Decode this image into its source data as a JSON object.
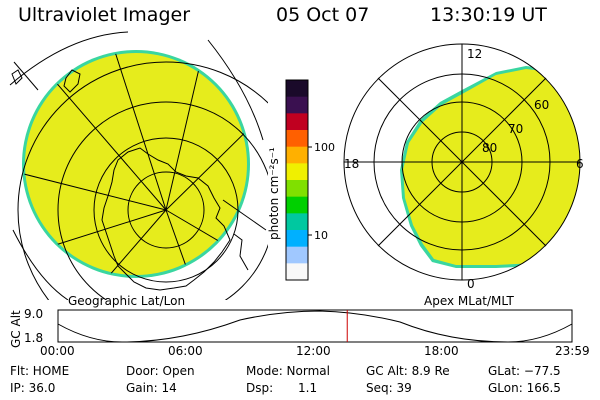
{
  "header": {
    "instrument": "Ultraviolet Imager",
    "date": "05 Oct 07",
    "time": "13:30:19 UT"
  },
  "left_panel": {
    "label": "Geographic Lat/Lon"
  },
  "right_panel": {
    "label": "Apex MLat/MLT",
    "mlt_labels": {
      "top": "12",
      "left": "18",
      "right": "6",
      "bottom": "0"
    },
    "lat_labels": [
      "60",
      "70",
      "80"
    ]
  },
  "colorbar": {
    "unit": "photon cm⁻²s⁻¹",
    "tick_labels": [
      "100",
      "10"
    ],
    "colors": [
      "#1a0a2a",
      "#3a1050",
      "#c00020",
      "#ff6000",
      "#ffb000",
      "#f0f000",
      "#80e000",
      "#00d000",
      "#00c8a0",
      "#00b0ff",
      "#a0c8ff",
      "#f8f8f8"
    ]
  },
  "altitude_chart": {
    "ylabel": "GC Alt",
    "ymax_label": "9.0",
    "ymin_label": "1.8",
    "time_ticks": [
      "00:00",
      "06:00",
      "12:00",
      "18:00",
      "23:59"
    ],
    "current_time_hours": 13.505
  },
  "status": {
    "flt": "Flt: HOME",
    "ip": "IP: 36.0",
    "door": "Door: Open",
    "gain": "Gain: 14",
    "mode": "Mode: Normal",
    "dsp_label": "Dsp:",
    "dsp_value": "1.1",
    "gc_alt": "GC Alt: 8.9 Re",
    "seq": "Seq: 39",
    "glat": "GLat: −77.5",
    "glon": "GLon: 166.5"
  },
  "colors": {
    "aurora_fill": "#e6ec1c",
    "aurora_edge": "#3ad6a0",
    "marker": "#cc0000"
  }
}
